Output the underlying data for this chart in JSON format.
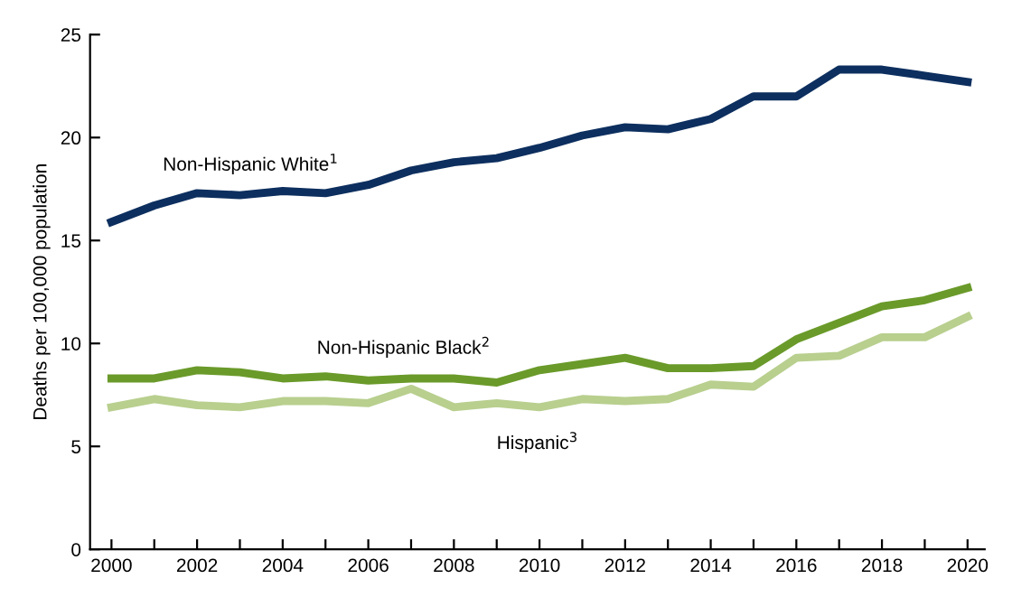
{
  "chart_data": {
    "type": "line",
    "ylabel": "Deaths per 100,000 population",
    "x": [
      2000,
      2001,
      2002,
      2003,
      2004,
      2005,
      2006,
      2007,
      2008,
      2009,
      2010,
      2011,
      2012,
      2013,
      2014,
      2015,
      2016,
      2017,
      2018,
      2019,
      2020
    ],
    "series": [
      {
        "name": "Non-Hispanic White$^{1}$",
        "color": "#0d2f5f",
        "values": [
          15.9,
          16.7,
          17.3,
          17.2,
          17.4,
          17.3,
          17.7,
          18.4,
          18.8,
          19.0,
          19.5,
          20.1,
          20.5,
          20.4,
          20.9,
          22.0,
          22.0,
          23.3,
          23.3,
          23.0,
          22.7
        ]
      },
      {
        "name": "Non-Hispanic Black$^{2}$",
        "color": "#6a9a2a",
        "values": [
          8.3,
          8.3,
          8.7,
          8.6,
          8.3,
          8.4,
          8.2,
          8.3,
          8.3,
          8.1,
          8.7,
          9.0,
          9.3,
          8.8,
          8.8,
          8.9,
          10.2,
          11.0,
          11.8,
          12.1,
          12.7
        ]
      },
      {
        "name": "Hispanic$^{3}$",
        "color": "#b8cf8e",
        "values": [
          6.9,
          7.3,
          7.0,
          6.9,
          7.2,
          7.2,
          7.1,
          7.8,
          6.9,
          7.1,
          6.9,
          7.3,
          7.2,
          7.3,
          8.0,
          7.9,
          9.3,
          9.4,
          10.3,
          10.3,
          11.3
        ]
      }
    ],
    "xlim": [
      1999.5,
      2020.4
    ],
    "ylim": [
      0,
      25
    ],
    "xticks": [
      2000,
      {
        "value": 2001,
        "label": null
      },
      2002,
      {
        "value": 2003,
        "label": null
      },
      2004,
      {
        "value": 2005,
        "label": null
      },
      2006,
      {
        "value": 2007,
        "label": null
      },
      2008,
      {
        "value": 2009,
        "label": null
      },
      2010,
      {
        "value": 2011,
        "label": null
      },
      2012,
      {
        "value": 2013,
        "label": null
      },
      2014,
      {
        "value": 2015,
        "label": null
      },
      2016,
      {
        "value": 2017,
        "label": null
      },
      2018,
      {
        "value": 2019,
        "label": null
      },
      2020
    ],
    "yticks": [
      0,
      5,
      10,
      15,
      20,
      25
    ],
    "grid": false,
    "legend": false,
    "marker": "none",
    "line_style": "solid"
  }
}
